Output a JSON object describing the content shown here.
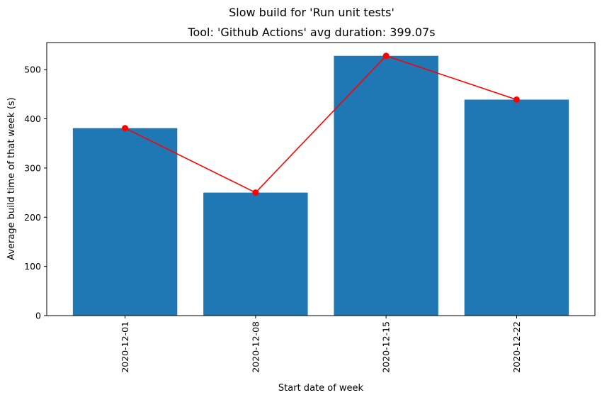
{
  "figure": {
    "suptitle": "Slow build for 'Run unit tests'"
  },
  "chart_data": {
    "type": "bar",
    "title": "Tool: 'Github Actions' avg duration: 399.07s",
    "xlabel": "Start date of week",
    "ylabel": "Average build time of that week (s)",
    "categories": [
      "2020-12-01",
      "2020-12-08",
      "2020-12-15",
      "2020-12-22"
    ],
    "series": [
      {
        "type": "bar",
        "values": [
          381,
          250,
          528,
          439
        ],
        "color": "#1f77b4"
      },
      {
        "type": "line",
        "values": [
          381,
          250,
          528,
          439
        ],
        "color": "#ff0000",
        "marker": "circle"
      }
    ],
    "ylim": [
      0,
      555
    ],
    "yticks": [
      0,
      100,
      200,
      300,
      400,
      500
    ],
    "grid": false,
    "legend": "none"
  }
}
